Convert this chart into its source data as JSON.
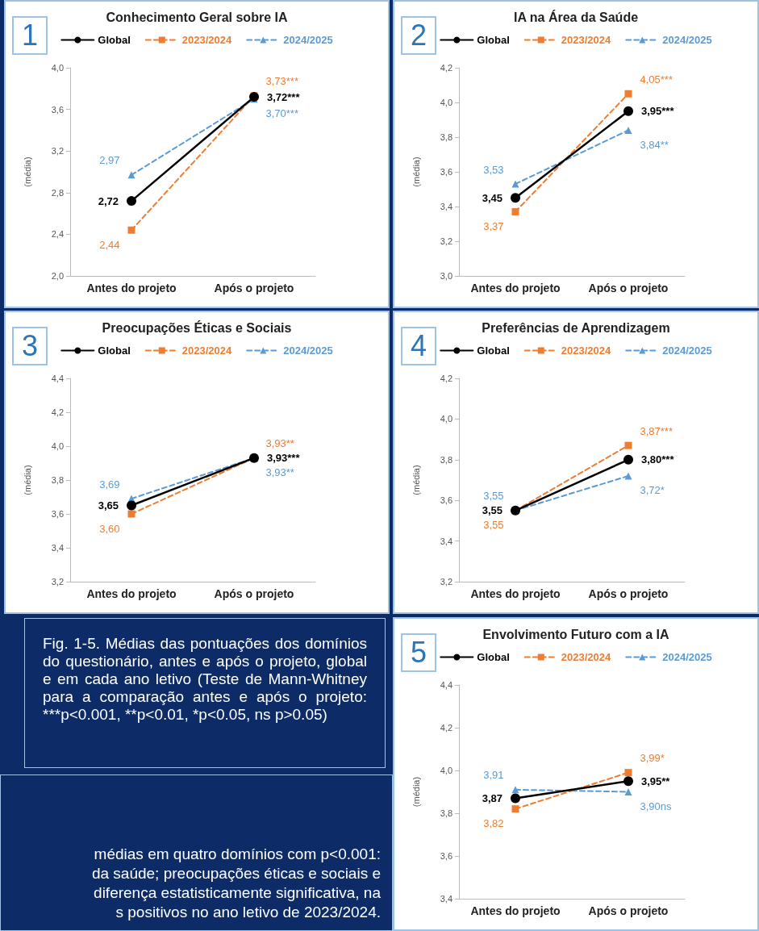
{
  "chart_data": [
    {
      "type": "line",
      "title": "Conhecimento Geral sobre IA",
      "ylabel": "(média)",
      "annotations": [
        "1"
      ],
      "categories": [
        "Antes do projeto",
        "Após o projeto"
      ],
      "ylim": [
        2.0,
        4.0
      ],
      "yticks": [
        {
          "value": 2.0,
          "label": "2,0"
        },
        {
          "value": 2.4,
          "label": "2,4"
        },
        {
          "value": 2.8,
          "label": "2,8"
        },
        {
          "value": 3.2,
          "label": "3,2"
        },
        {
          "value": 3.6,
          "label": "3,6"
        },
        {
          "value": 4.0,
          "label": "4,0"
        }
      ],
      "grid": false,
      "legend": "top",
      "series": [
        {
          "name": "Global",
          "color": "#000000",
          "marker": "circle",
          "line_style": "solid",
          "values": [
            2.72,
            3.72
          ],
          "value_labels": [
            "2,72",
            "3,72***"
          ]
        },
        {
          "name": "2023/2024",
          "color": "#ed7d31",
          "marker": "square",
          "line_style": "dashed",
          "values": [
            2.44,
            3.73
          ],
          "value_labels": [
            "2,44",
            "3,73***"
          ]
        },
        {
          "name": "2024/2025",
          "color": "#5b9bd5",
          "marker": "triangle",
          "line_style": "dashed",
          "values": [
            2.97,
            3.7
          ],
          "value_labels": [
            "2,97",
            "3,70***"
          ]
        }
      ]
    },
    {
      "type": "line",
      "title": "IA na Área da Saúde",
      "ylabel": "(média)",
      "annotations": [
        "2"
      ],
      "categories": [
        "Antes do projeto",
        "Após o projeto"
      ],
      "ylim": [
        3.0,
        4.2
      ],
      "yticks": [
        {
          "value": 3.0,
          "label": "3,0"
        },
        {
          "value": 3.2,
          "label": "3,2"
        },
        {
          "value": 3.4,
          "label": "3,4"
        },
        {
          "value": 3.6,
          "label": "3,6"
        },
        {
          "value": 3.8,
          "label": "3,8"
        },
        {
          "value": 4.0,
          "label": "4,0"
        },
        {
          "value": 4.2,
          "label": "4,2"
        }
      ],
      "grid": false,
      "legend": "top",
      "series": [
        {
          "name": "Global",
          "color": "#000000",
          "marker": "circle",
          "line_style": "solid",
          "values": [
            3.45,
            3.95
          ],
          "value_labels": [
            "3,45",
            "3,95***"
          ]
        },
        {
          "name": "2023/2024",
          "color": "#ed7d31",
          "marker": "square",
          "line_style": "dashed",
          "values": [
            3.37,
            4.05
          ],
          "value_labels": [
            "3,37",
            "4,05***"
          ]
        },
        {
          "name": "2024/2025",
          "color": "#5b9bd5",
          "marker": "triangle",
          "line_style": "dashed",
          "values": [
            3.53,
            3.84
          ],
          "value_labels": [
            "3,53",
            "3,84**"
          ]
        }
      ]
    },
    {
      "type": "line",
      "title": "Preocupações Éticas e Sociais",
      "ylabel": "(média)",
      "annotations": [
        "3"
      ],
      "categories": [
        "Antes do projeto",
        "Após o projeto"
      ],
      "ylim": [
        3.2,
        4.4
      ],
      "yticks": [
        {
          "value": 3.2,
          "label": "3,2"
        },
        {
          "value": 3.4,
          "label": "3,4"
        },
        {
          "value": 3.6,
          "label": "3,6"
        },
        {
          "value": 3.8,
          "label": "3,8"
        },
        {
          "value": 4.0,
          "label": "4,0"
        },
        {
          "value": 4.2,
          "label": "4,2"
        },
        {
          "value": 4.4,
          "label": "4,4"
        }
      ],
      "grid": false,
      "legend": "top",
      "series": [
        {
          "name": "Global",
          "color": "#000000",
          "marker": "circle",
          "line_style": "solid",
          "values": [
            3.65,
            3.93
          ],
          "value_labels": [
            "3,65",
            "3,93***"
          ]
        },
        {
          "name": "2023/2024",
          "color": "#ed7d31",
          "marker": "square",
          "line_style": "dashed",
          "values": [
            3.6,
            3.93
          ],
          "value_labels": [
            "3,60",
            "3,93**"
          ]
        },
        {
          "name": "2024/2025",
          "color": "#5b9bd5",
          "marker": "triangle",
          "line_style": "dashed",
          "values": [
            3.69,
            3.93
          ],
          "value_labels": [
            "3,69",
            "3,93**"
          ]
        }
      ]
    },
    {
      "type": "line",
      "title": "Preferências de Aprendizagem",
      "ylabel": "(média)",
      "annotations": [
        "4"
      ],
      "categories": [
        "Antes do projeto",
        "Após o projeto"
      ],
      "ylim": [
        3.2,
        4.2
      ],
      "yticks": [
        {
          "value": 3.2,
          "label": "3,2"
        },
        {
          "value": 3.4,
          "label": "3,4"
        },
        {
          "value": 3.6,
          "label": "3,6"
        },
        {
          "value": 3.8,
          "label": "3,8"
        },
        {
          "value": 4.0,
          "label": "4,0"
        },
        {
          "value": 4.2,
          "label": "4,2"
        }
      ],
      "grid": false,
      "legend": "top",
      "series": [
        {
          "name": "Global",
          "color": "#000000",
          "marker": "circle",
          "line_style": "solid",
          "values": [
            3.55,
            3.8
          ],
          "value_labels": [
            "3,55",
            "3,80***"
          ]
        },
        {
          "name": "2023/2024",
          "color": "#ed7d31",
          "marker": "square",
          "line_style": "dashed",
          "values": [
            3.55,
            3.87
          ],
          "value_labels": [
            "3,55",
            "3,87***"
          ]
        },
        {
          "name": "2024/2025",
          "color": "#5b9bd5",
          "marker": "triangle",
          "line_style": "dashed",
          "values": [
            3.55,
            3.72
          ],
          "value_labels": [
            "3,55",
            "3,72*"
          ]
        }
      ]
    },
    {
      "type": "other",
      "annotations": [
        "Fig. 1-5. Médias das pontuações dos domínios do questionário, antes e após o projeto, global e em cada ano letivo (Teste de Mann-Whitney para a comparação antes e após o projeto: ***p<0.001, **p<0.01, *p<0.05, ns p>0.05)"
      ]
    },
    {
      "type": "line",
      "title": "Envolvimento Futuro com a IA",
      "ylabel": "(média)",
      "annotations": [
        "5"
      ],
      "categories": [
        "Antes do projeto",
        "Após o projeto"
      ],
      "ylim": [
        3.4,
        4.4
      ],
      "yticks": [
        {
          "value": 3.4,
          "label": "3,4"
        },
        {
          "value": 3.6,
          "label": "3,6"
        },
        {
          "value": 3.8,
          "label": "3,8"
        },
        {
          "value": 4.0,
          "label": "4,0"
        },
        {
          "value": 4.2,
          "label": "4,2"
        },
        {
          "value": 4.4,
          "label": "4,4"
        }
      ],
      "grid": false,
      "legend": "top",
      "series": [
        {
          "name": "Global",
          "color": "#000000",
          "marker": "circle",
          "line_style": "solid",
          "values": [
            3.87,
            3.95
          ],
          "value_labels": [
            "3,87",
            "3,95**"
          ]
        },
        {
          "name": "2023/2024",
          "color": "#ed7d31",
          "marker": "square",
          "line_style": "dashed",
          "values": [
            3.82,
            3.99
          ],
          "value_labels": [
            "3,82",
            "3,99*"
          ]
        },
        {
          "name": "2024/2025",
          "color": "#5b9bd5",
          "marker": "triangle",
          "line_style": "dashed",
          "values": [
            3.91,
            3.9
          ],
          "value_labels": [
            "3,91",
            "3,90ns"
          ]
        }
      ]
    },
    {
      "type": "other",
      "annotations": [
        "médias em quatro domínios com p<0.001:",
        "da saúde; preocupações éticas e sociais e",
        "diferença estatisticamente significativa, na",
        "s positivos no ano letivo de 2023/2024."
      ]
    }
  ]
}
